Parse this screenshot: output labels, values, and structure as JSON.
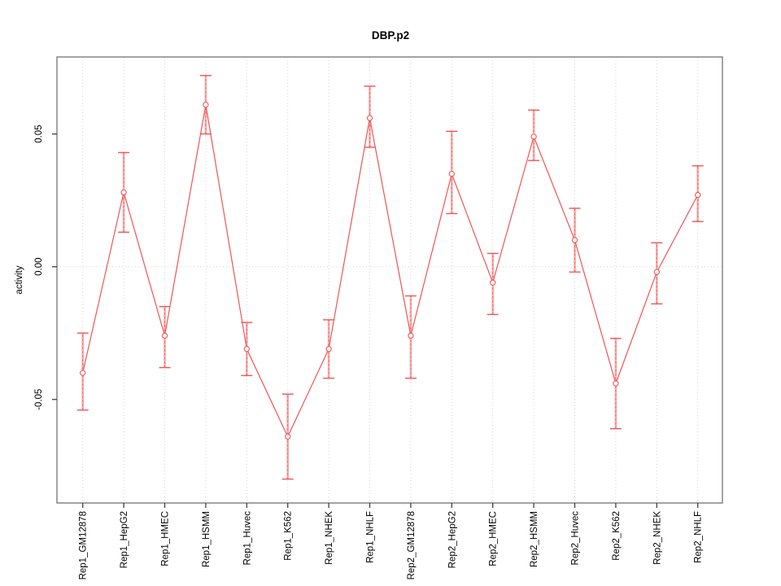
{
  "window": {
    "background": "#ffffff"
  },
  "chart_data": {
    "type": "line",
    "title": "DBP.p2",
    "xlabel": "",
    "ylabel": "activity",
    "categories": [
      "Rep1_GM12878",
      "Rep1_HepG2",
      "Rep1_HMEC",
      "Rep1_HSMM",
      "Rep1_Huvec",
      "Rep1_K562",
      "Rep1_NHEK",
      "Rep1_NHLF",
      "Rep2_GM12878",
      "Rep2_HepG2",
      "Rep2_HMEC",
      "Rep2_HSMM",
      "Rep2_Huvec",
      "Rep2_K562",
      "Rep2_NHEK",
      "Rep2_NHLF"
    ],
    "series": [
      {
        "name": "activity",
        "values": [
          -0.04,
          0.028,
          -0.026,
          0.061,
          -0.031,
          -0.064,
          -0.031,
          0.056,
          -0.026,
          0.035,
          -0.006,
          0.049,
          0.01,
          -0.044,
          -0.002,
          0.027
        ],
        "lower": [
          -0.054,
          0.013,
          -0.038,
          0.05,
          -0.041,
          -0.08,
          -0.042,
          0.045,
          -0.042,
          0.02,
          -0.018,
          0.04,
          -0.002,
          -0.061,
          -0.014,
          0.017
        ],
        "upper": [
          -0.025,
          0.043,
          -0.015,
          0.072,
          -0.021,
          -0.048,
          -0.02,
          0.068,
          -0.011,
          0.051,
          0.005,
          0.059,
          0.022,
          -0.027,
          0.009,
          0.038
        ]
      }
    ],
    "ylim": [
      -0.089,
      0.079
    ],
    "yticks": [
      0.05,
      0.0,
      -0.05
    ],
    "ytick_labels": [
      "0.05",
      "0.00",
      "-0.05"
    ],
    "grid": "vertical dotted line at every category; horizontal dotted line at y=0",
    "legend": "none",
    "marker": "open-circle",
    "colors": {
      "line": "#f25555",
      "errorbar_fill": "#f8acac",
      "grid": "#d6d6d6",
      "box": "#7d7d7d",
      "tick": "#404040",
      "text": "#000000"
    }
  }
}
